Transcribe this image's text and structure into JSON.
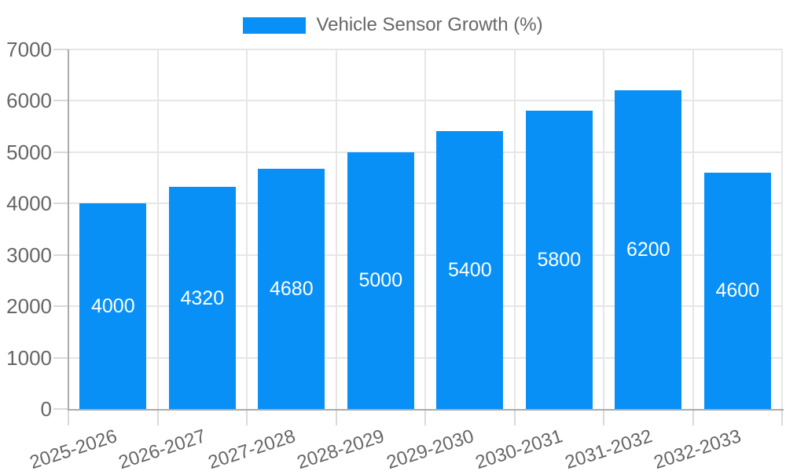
{
  "chart_data": {
    "type": "bar",
    "legend_label": "Vehicle Sensor Growth (%)",
    "legend_position": "top",
    "categories": [
      "2025-2026",
      "2026-2027",
      "2027-2028",
      "2028-2029",
      "2029-2030",
      "2030-2031",
      "2031-2032",
      "2032-2033"
    ],
    "values": [
      4000,
      4320,
      4680,
      5000,
      5400,
      5800,
      6200,
      4600
    ],
    "value_labels": [
      "4000",
      "4320",
      "4680",
      "5000",
      "5400",
      "5800",
      "6200",
      "4600"
    ],
    "yticks": [
      "0",
      "1000",
      "2000",
      "3000",
      "4000",
      "5000",
      "6000",
      "7000"
    ],
    "ylim": [
      0,
      7000
    ],
    "xlabel": "",
    "ylabel": "",
    "grid": true,
    "colors": {
      "bar": "#0990f7",
      "value_label": "#ffffff",
      "axis_text": "#666666",
      "grid_line": "#e6e6e6",
      "tick_mark": "#d9d9d9",
      "axis_line": "#ababab",
      "background": "#ffffff"
    }
  }
}
